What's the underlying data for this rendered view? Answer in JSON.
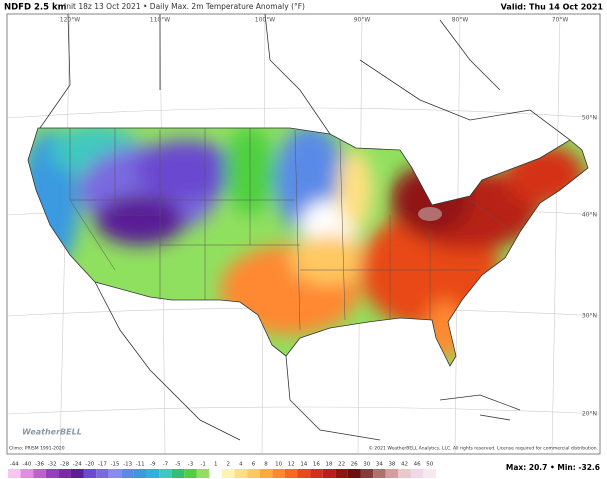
{
  "header": {
    "model": "NDFD 2.5 km",
    "info": "Init 18z 13 Oct 2021 • Daily Max. 2m Temperature Anomaly (°F)",
    "valid": "Valid: Thu 14 Oct 2021"
  },
  "map": {
    "lon_labels": [
      "120°W",
      "110°W",
      "100°W",
      "90°W",
      "80°W",
      "70°W"
    ],
    "lat_labels": [
      "50°N",
      "40°N",
      "30°N",
      "20°N"
    ],
    "logo": "WeatherBELL"
  },
  "colorbar": {
    "ticks": [
      -44,
      -40,
      -36,
      -32,
      -28,
      -24,
      -20,
      -17,
      -15,
      -13,
      -11,
      -9,
      -7,
      -5,
      -3,
      -1,
      1,
      2,
      4,
      6,
      8,
      10,
      12,
      14,
      16,
      18,
      22,
      26,
      30,
      34,
      38,
      42,
      46,
      50
    ],
    "colors": [
      "#f7c6f0",
      "#e08ee0",
      "#c060d0",
      "#9a3cc0",
      "#7a2aa8",
      "#5a1e96",
      "#6a4ad0",
      "#7a6ae0",
      "#8a8af0",
      "#5a8ae8",
      "#3a9ae0",
      "#30b0e0",
      "#40c8c0",
      "#30c070",
      "#50d040",
      "#90e060",
      "#ffffff",
      "#fff4b0",
      "#ffe080",
      "#ffc860",
      "#ffa840",
      "#ff8830",
      "#f86820",
      "#e84a18",
      "#d43018",
      "#b82018",
      "#901414",
      "#6e0e0e",
      "#8a3a3a",
      "#b07070",
      "#d0a0a0",
      "#e8c8c8",
      "#f0d8e8",
      "#f8e8f0"
    ]
  },
  "footer": {
    "climo": "Climo: PRISM 1991-2020",
    "copyright": "© 2021 WeatherBELL Analytics, LLC. All rights reserved. License required for commercial distribution.",
    "stats": "Max: 20.7 • Min: -32.6"
  }
}
